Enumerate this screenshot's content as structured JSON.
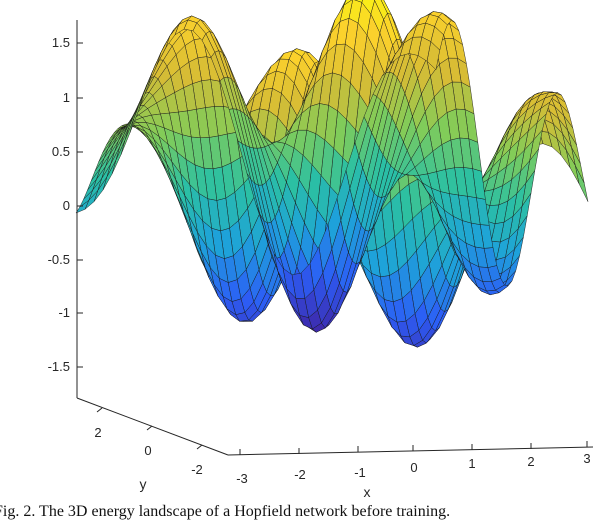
{
  "chart_data": {
    "type": "surface",
    "title": "",
    "xlabel": "x",
    "ylabel": "y",
    "zlabel": "",
    "xlim": [
      -3,
      3
    ],
    "ylim": [
      -3,
      3
    ],
    "zlim": [
      -1.8,
      1.8
    ],
    "x_ticks": [
      "-3",
      "-2",
      "-1",
      "0",
      "1",
      "2",
      "3"
    ],
    "y_ticks": [
      "-2",
      "0",
      "2"
    ],
    "z_ticks": [
      "1.5",
      "1",
      "0.5",
      "0",
      "-0.5",
      "-1",
      "-1.5"
    ],
    "colormap": "parula",
    "colormap_colors": [
      "#3e26a8",
      "#2c5ef6",
      "#1ea3d9",
      "#2bc0a3",
      "#81cc59",
      "#d6bc35",
      "#fbd12c",
      "#f9fb0e"
    ],
    "grid": false,
    "grid_size": [
      41,
      41
    ],
    "z_range_shown": [
      -1.7,
      1.7
    ]
  },
  "caption": "Fig. 2.  The 3D energy landscape of a Hopfield network before training."
}
